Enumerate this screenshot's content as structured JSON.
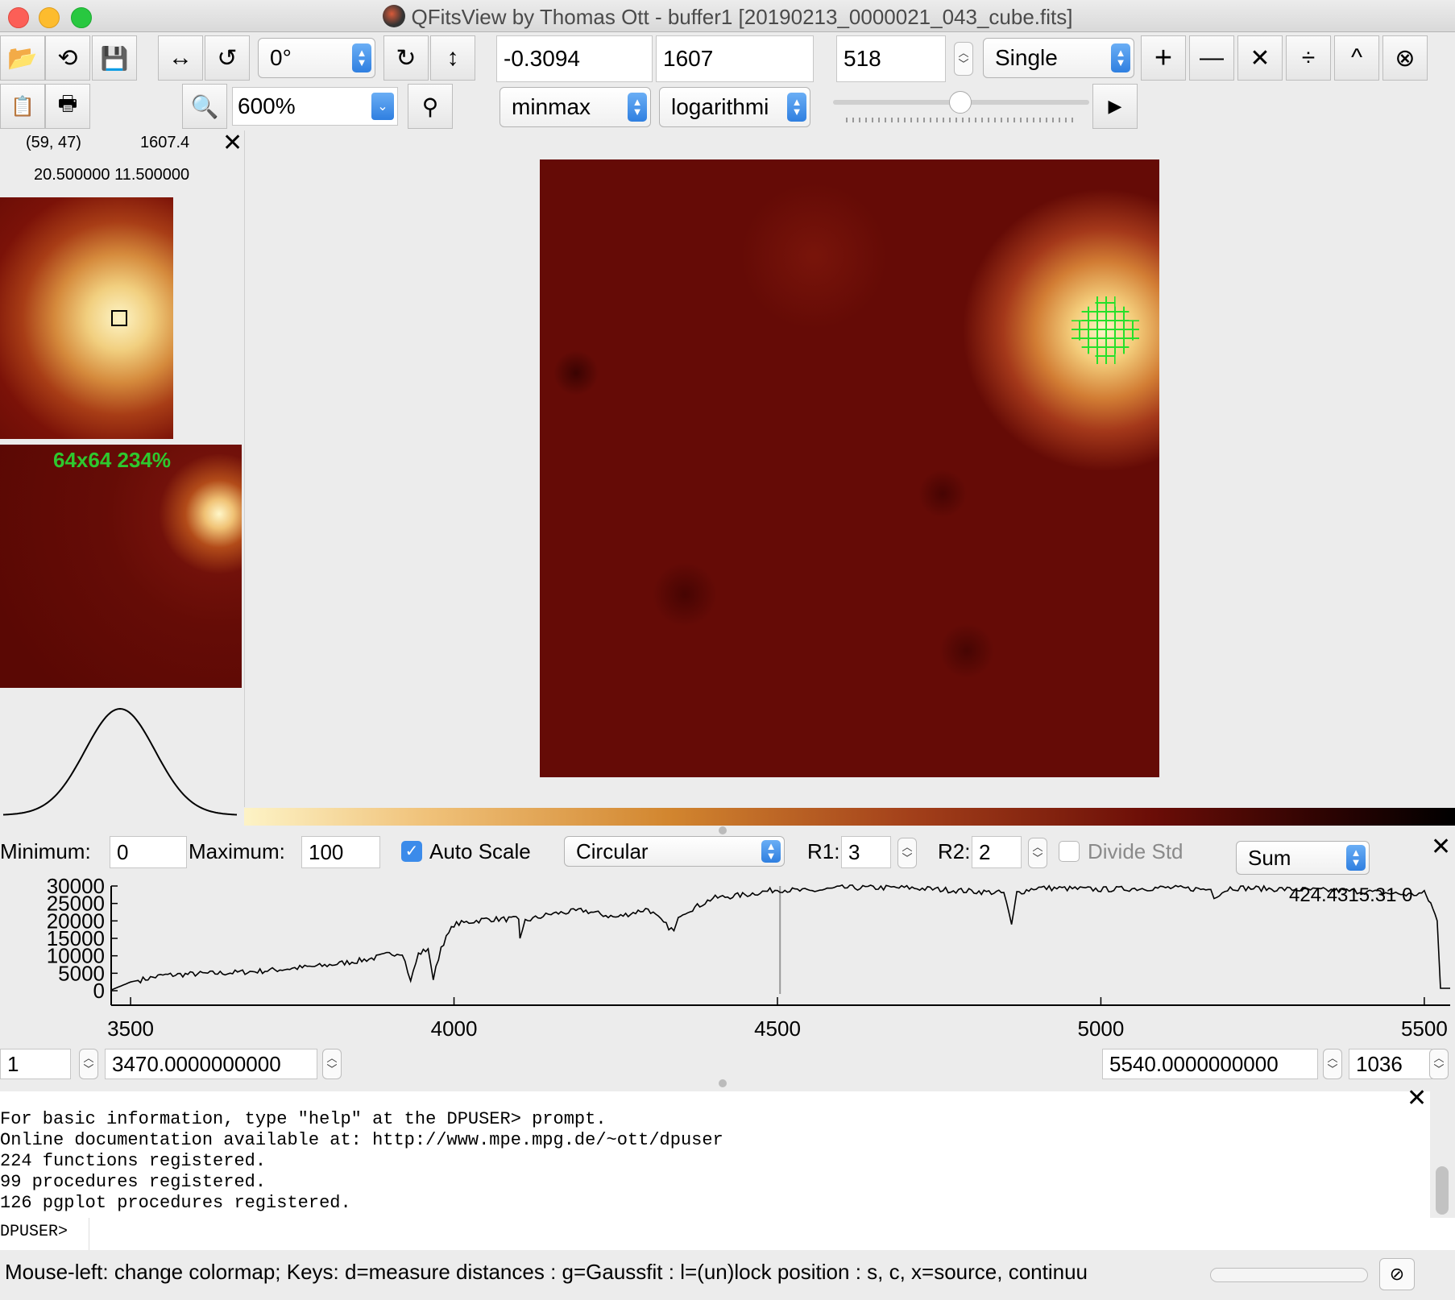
{
  "window": {
    "title": "QFitsView by Thomas Ott - buffer1 [20190213_0000021_043_cube.fits]"
  },
  "toolbar": {
    "rotation": "0°",
    "value_field": "-0.3094",
    "count_field": "1607",
    "frame_field": "518",
    "mode_select": "Single",
    "zoom": "600%",
    "scale_method": "minmax",
    "scale_type": "logarithmi",
    "ops": [
      "+",
      "—",
      "✕",
      "÷",
      "^",
      "⊗"
    ]
  },
  "info": {
    "cursor": "(59, 47)",
    "value": "1607.4",
    "world_coords": "20.500000 11.500000",
    "overview_label": "64x64  234%"
  },
  "spectrum_controls": {
    "min_label": "Minimum:",
    "min_value": "0",
    "max_label": "Maximum:",
    "max_value": "100",
    "auto_scale_label": "Auto Scale",
    "auto_scale_checked": true,
    "aperture": "Circular",
    "r1_label": "R1:",
    "r1": "3",
    "r2_label": "R2:",
    "r2": "2",
    "divide_std_label": "Divide Std",
    "combine": "Sum"
  },
  "chart_data": {
    "type": "line",
    "title": "",
    "xlabel": "",
    "ylabel": "",
    "xlim": [
      3470,
      5540
    ],
    "ylim": [
      0,
      30000
    ],
    "xticks": [
      "3500",
      "4000",
      "4500",
      "5000",
      "5500"
    ],
    "yticks": [
      "30000",
      "25000",
      "20000",
      "15000",
      "10000",
      "5000",
      "0"
    ],
    "marker_x": 4504,
    "readout": "424.4315.31 0",
    "series": [
      {
        "x": [
          3470,
          3500,
          3550,
          3600,
          3650,
          3700,
          3750,
          3800,
          3850,
          3880,
          3900,
          3920,
          3933,
          3945,
          3960,
          3968,
          3980,
          4000,
          4050,
          4100,
          4102,
          4110,
          4150,
          4200,
          4250,
          4300,
          4320,
          4340,
          4350,
          4380,
          4400,
          4450,
          4500,
          4550,
          4600,
          4700,
          4800,
          4850,
          4862,
          4870,
          4900,
          5000,
          5100,
          5170,
          5175,
          5200,
          5300,
          5400,
          5480,
          5500,
          5510,
          5520,
          5525,
          5540
        ],
        "y": [
          200,
          2500,
          4400,
          4800,
          5100,
          5600,
          6400,
          7200,
          8500,
          9500,
          10500,
          11000,
          2800,
          10500,
          12000,
          3300,
          12500,
          19000,
          20500,
          20500,
          15000,
          20000,
          22000,
          23000,
          21000,
          23500,
          20000,
          17000,
          22000,
          24500,
          26500,
          27500,
          29000,
          28500,
          29500,
          29500,
          28500,
          28000,
          19000,
          28000,
          29500,
          29000,
          29500,
          29000,
          27000,
          29500,
          29000,
          28500,
          27500,
          28000,
          25000,
          20000,
          700,
          700
        ]
      }
    ],
    "xrange_start": "3470.0000000000",
    "xrange_end": "5540.0000000000",
    "channel_start": "1",
    "channel_end": "1036"
  },
  "profile_chart": {
    "peak_center": 0.5,
    "width": 0.15
  },
  "console": {
    "lines": [
      "For basic information, type \"help\" at the DPUSER> prompt.",
      "Online documentation available at: http://www.mpe.mpg.de/~ott/dpuser",
      "224 functions registered.",
      "99 procedures registered.",
      "126 pgplot procedures registered."
    ],
    "prompt": "DPUSER>"
  },
  "status": {
    "text": "Mouse-left: change colormap; Keys: d=measure distances : g=Gaussfit : l=(un)lock position : s, c, x=source, continuu"
  }
}
